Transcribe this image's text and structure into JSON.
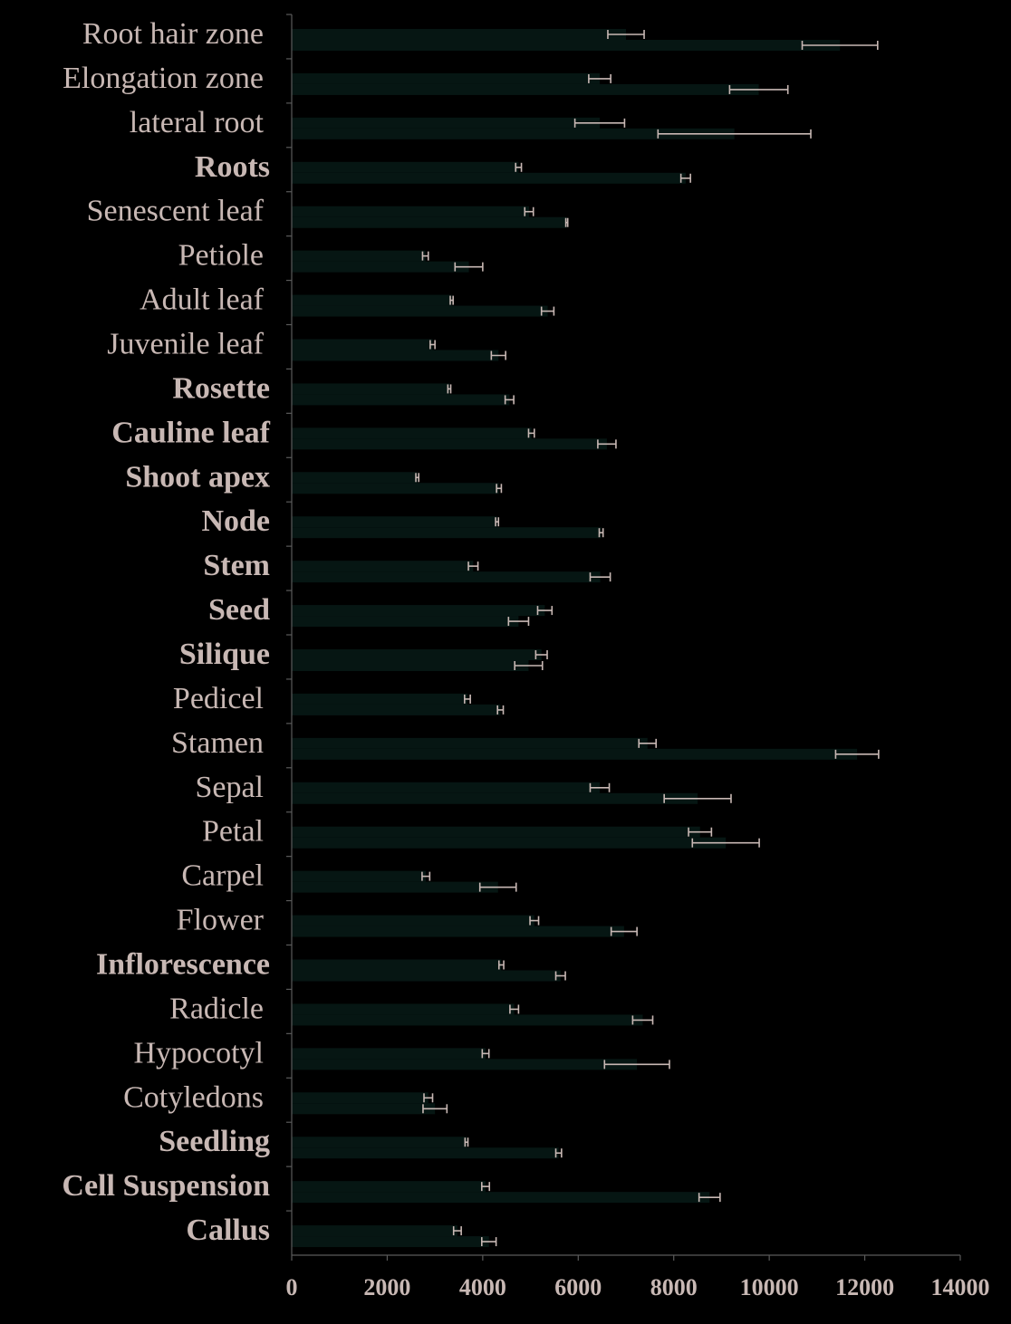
{
  "colors": {
    "background": "#000000",
    "text": "#c8b8b4",
    "axis": "#5a5a5a",
    "series_a": "#061613",
    "series_b": "#061613",
    "error_bar": "#c8b8b4"
  },
  "chart_data": {
    "type": "bar",
    "orientation": "horizontal",
    "title": "",
    "xlabel": "",
    "ylabel": "",
    "xlim": [
      0,
      14000
    ],
    "xticks": [
      "0",
      "2000",
      "4000",
      "6000",
      "8000",
      "10000",
      "12000",
      "14000"
    ],
    "legend": "none",
    "grid": false,
    "categories": [
      {
        "label": "Root hair zone",
        "bold": false
      },
      {
        "label": "Elongation zone",
        "bold": false
      },
      {
        "label": "lateral root",
        "bold": false
      },
      {
        "label": "Roots",
        "bold": true
      },
      {
        "label": "Senescent leaf",
        "bold": false
      },
      {
        "label": "Petiole",
        "bold": false
      },
      {
        "label": "Adult leaf",
        "bold": false
      },
      {
        "label": "Juvenile leaf",
        "bold": false
      },
      {
        "label": "Rosette",
        "bold": true
      },
      {
        "label": "Cauline leaf",
        "bold": true
      },
      {
        "label": "Shoot apex",
        "bold": true
      },
      {
        "label": "Node",
        "bold": true
      },
      {
        "label": "Stem",
        "bold": true
      },
      {
        "label": "Seed",
        "bold": true
      },
      {
        "label": "Silique",
        "bold": true
      },
      {
        "label": "Pedicel",
        "bold": false
      },
      {
        "label": "Stamen",
        "bold": false
      },
      {
        "label": "Sepal",
        "bold": false
      },
      {
        "label": "Petal",
        "bold": false
      },
      {
        "label": "Carpel",
        "bold": false
      },
      {
        "label": "Flower",
        "bold": false
      },
      {
        "label": "Inflorescence",
        "bold": true
      },
      {
        "label": "Radicle",
        "bold": false
      },
      {
        "label": "Hypocotyl",
        "bold": false
      },
      {
        "label": "Cotyledons",
        "bold": false
      },
      {
        "label": "Seedling",
        "bold": true
      },
      {
        "label": "Cell Suspension",
        "bold": true
      },
      {
        "label": "Callus",
        "bold": true
      }
    ],
    "series": [
      {
        "values": [
          7000,
          6450,
          6450,
          4750,
          4970,
          2800,
          3350,
          2950,
          3300,
          5020,
          2630,
          4300,
          3800,
          5300,
          5230,
          3680,
          7450,
          6450,
          8550,
          2810,
          5080,
          4390,
          4660,
          4060,
          2860,
          3660,
          4060,
          3470
        ],
        "errors": [
          380,
          230,
          520,
          60,
          90,
          60,
          30,
          50,
          30,
          60,
          30,
          30,
          100,
          150,
          120,
          60,
          180,
          200,
          240,
          80,
          90,
          50,
          90,
          70,
          90,
          30,
          80,
          80
        ]
      },
      {
        "values": [
          11480,
          9780,
          9270,
          8250,
          5760,
          3710,
          5360,
          4330,
          4560,
          6600,
          4340,
          6480,
          6460,
          4750,
          4960,
          4370,
          11840,
          8500,
          9090,
          4320,
          6960,
          5630,
          7350,
          7230,
          3000,
          5590,
          8750,
          4130
        ],
        "errors": [
          790,
          610,
          1600,
          100,
          20,
          290,
          130,
          150,
          90,
          190,
          50,
          40,
          210,
          210,
          290,
          60,
          450,
          700,
          700,
          380,
          270,
          100,
          210,
          680,
          250,
          60,
          220,
          150
        ]
      }
    ]
  }
}
